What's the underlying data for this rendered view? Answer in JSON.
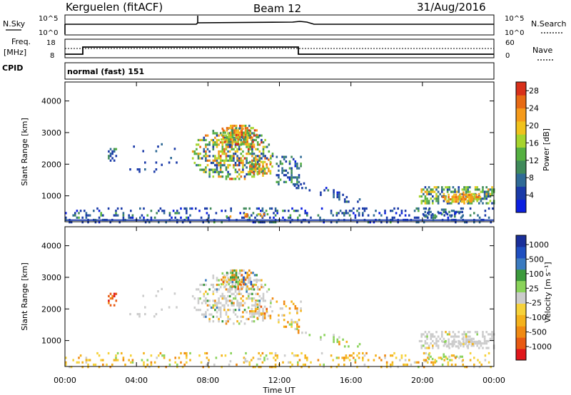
{
  "header": {
    "site": "Kerguelen (fitACF)",
    "beam": "Beam 12",
    "date": "31/Aug/2016"
  },
  "strips": {
    "nsky": {
      "label": "N.Sky",
      "ticks_left": [
        "10^5",
        "10^0"
      ],
      "ticks_right": [
        "10^5",
        "10^0"
      ],
      "right_label": "N.Search"
    },
    "freq": {
      "label_top": "Freq.",
      "label_unit": "[MHz]",
      "ticks_left": [
        "18",
        "8"
      ],
      "ticks_right": [
        "60",
        "0"
      ],
      "right_label": "Nave"
    },
    "cpid": {
      "label": "CPID",
      "value": "normal (fast) 151"
    }
  },
  "colors": {
    "power": [
      "#0b1fe0",
      "#1a3aa8",
      "#2f6a96",
      "#3f8a5a",
      "#55b041",
      "#a6d42d",
      "#f0c21c",
      "#f59a1a",
      "#e76a14",
      "#d8301a"
    ],
    "velocity": [
      "#e0161b",
      "#e85a12",
      "#f08a12",
      "#f4b21c",
      "#f6d23a",
      "#cccccc",
      "#8ad35a",
      "#3c9a3c",
      "#3b7bc0",
      "#1f4fc0",
      "#1a2f9a"
    ]
  },
  "chart_data": [
    {
      "type": "heatmap",
      "panel": "power",
      "ylabel": "Slant Range [km]",
      "xlim_hours": [
        0,
        24
      ],
      "ylim_km": [
        180,
        4600
      ],
      "y_ticks": [
        "1000",
        "2000",
        "3000",
        "4000"
      ],
      "colorbar": {
        "label": "Power [dB]",
        "ticks": [
          "4",
          "8",
          "12",
          "16",
          "20",
          "24",
          "28"
        ],
        "range": [
          0,
          30
        ]
      }
    },
    {
      "type": "heatmap",
      "panel": "velocity",
      "ylabel": "Slant Range [km]",
      "xlabel": "Time UT",
      "xlim_hours": [
        0,
        24
      ],
      "ylim_km": [
        180,
        4600
      ],
      "x_ticks": [
        "00:00",
        "04:00",
        "08:00",
        "12:00",
        "16:00",
        "20:00",
        "00:00"
      ],
      "y_ticks": [
        "1000",
        "2000",
        "3000",
        "4000"
      ],
      "colorbar": {
        "label": "Velocity [m s⁻¹]",
        "ticks": [
          "1000",
          "500",
          "100",
          "25",
          "-25",
          "-100",
          "-500",
          "-1000"
        ]
      }
    }
  ]
}
